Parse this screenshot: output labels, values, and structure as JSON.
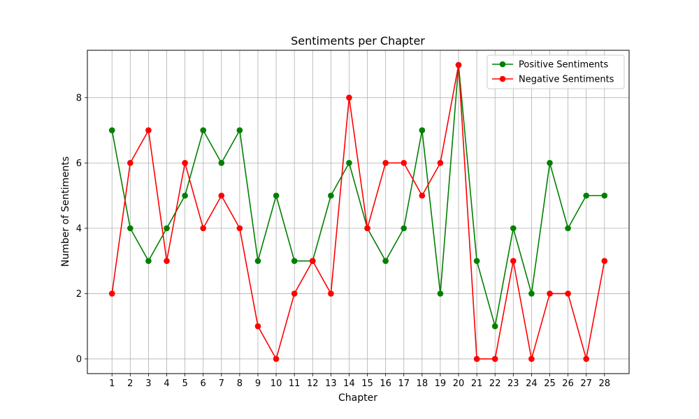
{
  "chart_data": {
    "type": "line",
    "title": "Sentiments per Chapter",
    "xlabel": "Chapter",
    "ylabel": "Number of Sentiments",
    "x": [
      1,
      2,
      3,
      4,
      5,
      6,
      7,
      8,
      9,
      10,
      11,
      12,
      13,
      14,
      15,
      16,
      17,
      18,
      19,
      20,
      21,
      22,
      23,
      24,
      25,
      26,
      27,
      28
    ],
    "ylim": [
      -0.45,
      9.45
    ],
    "yticks": [
      0,
      2,
      4,
      6,
      8
    ],
    "grid": true,
    "legend_position": "top-right",
    "series": [
      {
        "name": "Positive Sentiments",
        "color": "#008000",
        "marker": "circle",
        "values": [
          7,
          4,
          3,
          4,
          5,
          7,
          6,
          7,
          3,
          5,
          3,
          3,
          5,
          6,
          4,
          3,
          4,
          7,
          2,
          9,
          3,
          1,
          4,
          2,
          6,
          4,
          5,
          5
        ]
      },
      {
        "name": "Negative Sentiments",
        "color": "#ff0000",
        "marker": "circle",
        "values": [
          2,
          6,
          7,
          3,
          6,
          4,
          5,
          4,
          1,
          0,
          2,
          3,
          2,
          8,
          4,
          6,
          6,
          5,
          6,
          9,
          0,
          0,
          3,
          0,
          2,
          2,
          0,
          3
        ]
      }
    ]
  }
}
